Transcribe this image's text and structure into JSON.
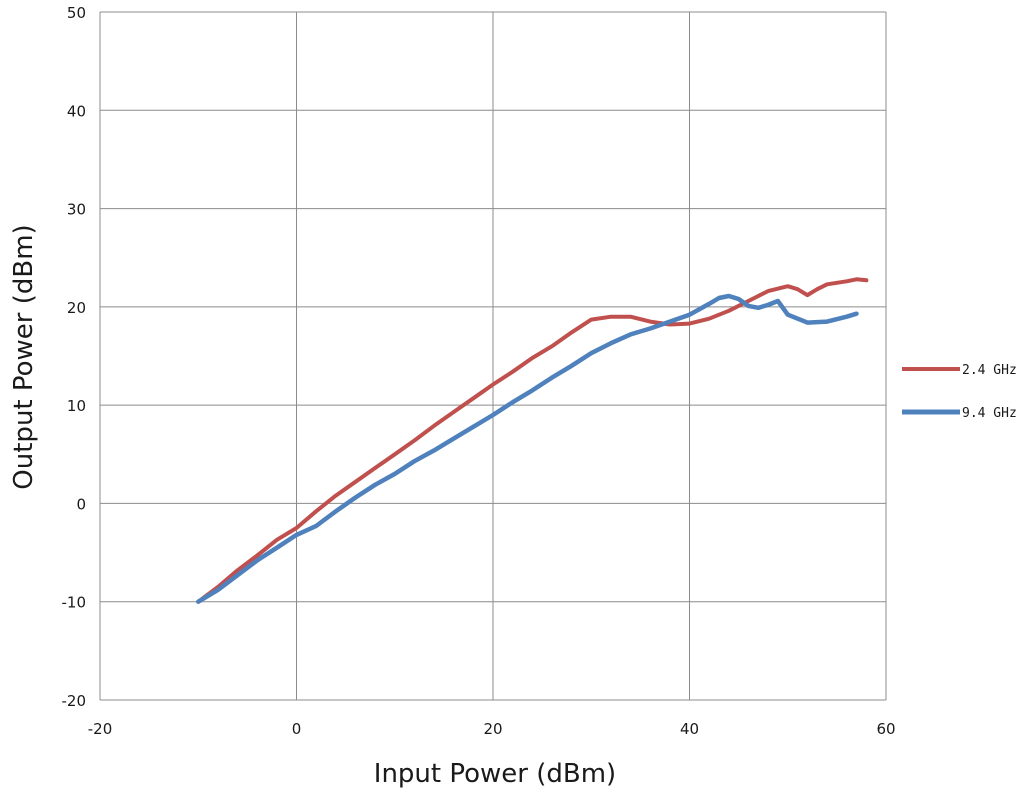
{
  "chart_data": {
    "type": "line",
    "title": "",
    "xlabel": "Input Power (dBm)",
    "ylabel": "Output Power (dBm)",
    "xlim": [
      -20,
      60
    ],
    "ylim": [
      -20,
      50
    ],
    "xticks": [
      -20,
      0,
      20,
      40,
      60
    ],
    "yticks": [
      -20,
      -10,
      0,
      10,
      20,
      30,
      40,
      50
    ],
    "grid": true,
    "legend_position": "right",
    "series": [
      {
        "name": "2.4 GHz",
        "color": "#c0504d",
        "x": [
          -10,
          -8,
          -6,
          -4,
          -2,
          0,
          2,
          4,
          6,
          8,
          10,
          12,
          14,
          16,
          18,
          20,
          22,
          24,
          26,
          28,
          30,
          32,
          34,
          36,
          38,
          40,
          42,
          44,
          46,
          48,
          50,
          51,
          52,
          53,
          54,
          56,
          57,
          58
        ],
        "y": [
          -10,
          -8.5,
          -6.8,
          -5.3,
          -3.7,
          -2.5,
          -0.8,
          0.8,
          2.2,
          3.6,
          5.0,
          6.4,
          7.9,
          9.3,
          10.7,
          12.1,
          13.4,
          14.8,
          16.0,
          17.4,
          18.7,
          19.0,
          19.0,
          18.5,
          18.2,
          18.3,
          18.8,
          19.6,
          20.6,
          21.6,
          22.1,
          21.8,
          21.2,
          21.8,
          22.3,
          22.6,
          22.8,
          22.7
        ]
      },
      {
        "name": "9.4 GHz",
        "color": "#4f81bd",
        "x": [
          -10,
          -8,
          -6,
          -4,
          -2,
          0,
          2,
          4,
          6,
          8,
          10,
          12,
          14,
          16,
          18,
          20,
          22,
          24,
          26,
          28,
          30,
          32,
          34,
          36,
          38,
          40,
          42,
          43,
          44,
          45,
          46,
          47,
          48,
          49,
          50,
          52,
          54,
          56,
          57
        ],
        "y": [
          -10,
          -8.8,
          -7.3,
          -5.8,
          -4.5,
          -3.2,
          -2.3,
          -0.8,
          0.6,
          1.9,
          3.0,
          4.3,
          5.4,
          6.6,
          7.8,
          9.0,
          10.3,
          11.5,
          12.8,
          14.0,
          15.3,
          16.3,
          17.2,
          17.8,
          18.5,
          19.2,
          20.3,
          20.9,
          21.1,
          20.8,
          20.1,
          19.9,
          20.2,
          20.6,
          19.2,
          18.4,
          18.5,
          19.0,
          19.3
        ]
      }
    ]
  }
}
